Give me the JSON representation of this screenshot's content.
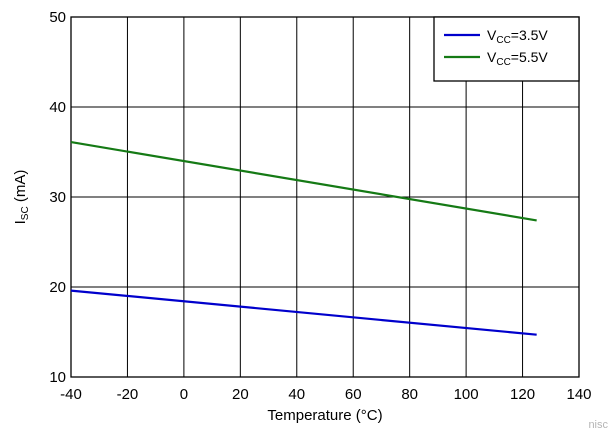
{
  "chart_data": {
    "type": "line",
    "title": "",
    "xlabel": "Temperature (°C)",
    "ylabel": {
      "main": "I",
      "sub": "SC",
      "rest": " (mA)"
    },
    "xlim": [
      -40,
      140
    ],
    "ylim": [
      10,
      50
    ],
    "xticks": [
      -40,
      -20,
      0,
      20,
      40,
      60,
      80,
      100,
      120,
      140
    ],
    "yticks": [
      10,
      20,
      30,
      40,
      50
    ],
    "grid": true,
    "legend_position": "top-right",
    "series": [
      {
        "name": {
          "main": "V",
          "sub": "CC",
          "rest": "=3.5V"
        },
        "color": "#0000cc",
        "x": [
          -40,
          125
        ],
        "y": [
          19.6,
          14.7
        ]
      },
      {
        "name": {
          "main": "V",
          "sub": "CC",
          "rest": "=5.5V"
        },
        "color": "#157a15",
        "x": [
          -40,
          125
        ],
        "y": [
          36.1,
          27.4
        ]
      }
    ]
  },
  "watermark": "nisc"
}
